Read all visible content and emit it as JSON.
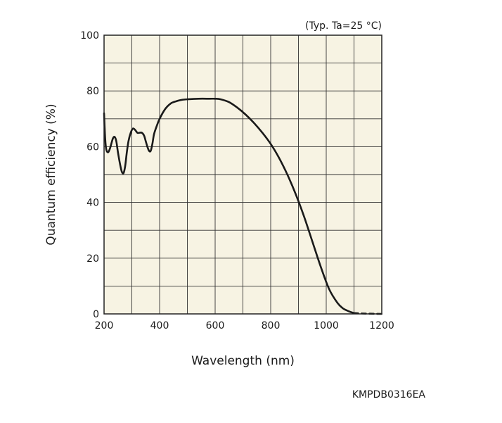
{
  "chart_data": {
    "type": "line",
    "title": "",
    "annotation": "(Typ. Ta=25 °C)",
    "xlabel": "Wavelength (nm)",
    "ylabel": "Quantum efficiency (%)",
    "xlim": [
      200,
      1200
    ],
    "ylim": [
      0,
      100
    ],
    "xticks": [
      200,
      400,
      600,
      800,
      1000,
      1200
    ],
    "yticks": [
      0,
      20,
      40,
      60,
      80,
      100
    ],
    "xtick_labels": [
      "200",
      "400",
      "600",
      "800",
      "1000",
      "1200"
    ],
    "ytick_labels": [
      "0",
      "20",
      "40",
      "60",
      "80",
      "100"
    ],
    "grid": true,
    "grid_x_step": 100,
    "grid_y_step": 10,
    "series": [
      {
        "style": "solid",
        "color": "#1a1a1a",
        "x": [
          200,
          204,
          208,
          214,
          220,
          226,
          232,
          238,
          244,
          250,
          258,
          264,
          270,
          276,
          282,
          288,
          296,
          304,
          312,
          320,
          328,
          336,
          344,
          350,
          356,
          362,
          368,
          374,
          380,
          390,
          400,
          420,
          440,
          460,
          480,
          500,
          540,
          580,
          600,
          620,
          650,
          680,
          710,
          740,
          770,
          800,
          830,
          860,
          890,
          920,
          950,
          980,
          1010,
          1040,
          1060,
          1080,
          1090,
          1100
        ],
        "y": [
          72,
          63,
          59,
          58,
          59,
          61,
          63,
          63.5,
          62,
          58,
          53.5,
          51,
          50.5,
          53,
          58,
          62,
          65,
          66.5,
          66,
          65,
          65,
          65,
          64,
          62,
          60,
          58.5,
          58.5,
          61,
          64.5,
          67.5,
          70,
          73.5,
          75.5,
          76.3,
          76.8,
          77,
          77.2,
          77.2,
          77.2,
          77,
          76,
          74,
          71.5,
          68.5,
          65,
          61,
          56,
          50,
          43,
          35,
          26,
          17,
          9,
          4,
          2,
          1,
          0.6,
          0.3
        ]
      },
      {
        "style": "dashed",
        "color": "#1a1a1a",
        "x": [
          1100,
          1120,
          1140,
          1160,
          1180,
          1200
        ],
        "y": [
          0.3,
          0.2,
          0.12,
          0.07,
          0.03,
          0
        ]
      }
    ]
  },
  "figure_id": "KMPDB0316EA"
}
